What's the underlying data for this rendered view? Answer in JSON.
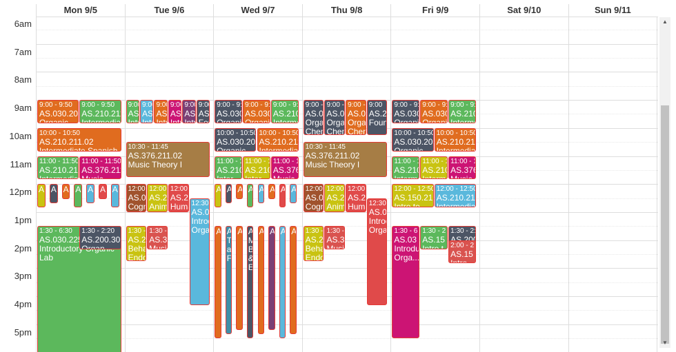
{
  "days": [
    "Mon 9/5",
    "Tue 9/6",
    "Wed 9/7",
    "Thu 9/8",
    "Fri 9/9",
    "Sat 9/10",
    "Sun 9/11"
  ],
  "times": [
    "6am",
    "7am",
    "8am",
    "9am",
    "10am",
    "11am",
    "12pm",
    "1pm",
    "2pm",
    "3pm",
    "4pm",
    "5pm"
  ],
  "colors": {
    "orange": "#e06c1f",
    "green": "#5cb85c",
    "slate": "#4c5565",
    "magenta": "#cc1474",
    "tan": "#a67d45",
    "yellow": "#c9c312",
    "red": "#e04a4a",
    "blue": "#5ab8dc",
    "brown": "#a0522d",
    "purple": "#7b3f74",
    "teal": "#3f8fa8",
    "crimson": "#d9534f"
  },
  "events": [
    {
      "day": 0,
      "start": 9,
      "end": 9.83,
      "col": 0,
      "cols": 2,
      "color": "orange",
      "time": "9:00 - 9:50",
      "code": "AS.030.205",
      "name": "Organic Chemistry I"
    },
    {
      "day": 0,
      "start": 9,
      "end": 9.83,
      "col": 1,
      "cols": 2,
      "color": "green",
      "time": "9:00 - 9:50",
      "code": "AS.210.211",
      "name": "Intermediate Spanish"
    },
    {
      "day": 0,
      "start": 10,
      "end": 10.83,
      "col": 0,
      "cols": 1,
      "color": "orange",
      "time": "10:00 - 10:50",
      "code": "AS.210.211.02",
      "name": "Intermediate Spanish"
    },
    {
      "day": 0,
      "start": 11,
      "end": 11.83,
      "col": 0,
      "cols": 2,
      "color": "green",
      "time": "11:00 - 11:50",
      "code": "AS.210.211",
      "name": "Intermediate"
    },
    {
      "day": 0,
      "start": 11,
      "end": 11.83,
      "col": 1,
      "cols": 2,
      "color": "magenta",
      "time": "11:00 - 11:50",
      "code": "AS.376.211",
      "name": "Music"
    },
    {
      "day": 0,
      "start": 13.5,
      "end": 18.5,
      "col": 0,
      "cols": 1,
      "color": "green",
      "time": "1:30 - 6:30",
      "code": "AS.030.225",
      "name": "Introductory Organic Lab"
    },
    {
      "day": 0,
      "start": 13.5,
      "end": 14.33,
      "col": 1,
      "cols": 2,
      "color": "slate",
      "time": "1:30 - 2:20",
      "code": "AS.200.302",
      "name": "Organ..."
    },
    {
      "day": 1,
      "start": 9,
      "end": 9.83,
      "col": 0,
      "cols": 6,
      "color": "green",
      "time": "9:00",
      "code": "AS.",
      "name": "Intr Org"
    },
    {
      "day": 1,
      "start": 9,
      "end": 9.83,
      "col": 1,
      "cols": 6,
      "color": "blue",
      "time": "9:00",
      "code": "AS.",
      "name": "Intr Org"
    },
    {
      "day": 1,
      "start": 9,
      "end": 9.83,
      "col": 2,
      "cols": 6,
      "color": "orange",
      "time": "9:00",
      "code": "AS.",
      "name": "Intr Org"
    },
    {
      "day": 1,
      "start": 9,
      "end": 9.83,
      "col": 3,
      "cols": 6,
      "color": "magenta",
      "time": "9:00",
      "code": "AS.",
      "name": "Intr Org"
    },
    {
      "day": 1,
      "start": 9,
      "end": 9.83,
      "col": 4,
      "cols": 6,
      "color": "purple",
      "time": "9:00",
      "code": "AS.",
      "name": "Intr Org"
    },
    {
      "day": 1,
      "start": 9,
      "end": 9.83,
      "col": 5,
      "cols": 6,
      "color": "slate",
      "time": "9:00",
      "code": "AS.",
      "name": "Foun of"
    },
    {
      "day": 1,
      "start": 10.5,
      "end": 11.75,
      "col": 0,
      "cols": 1,
      "color": "tan",
      "time": "10:30 - 11:45",
      "code": "AS.376.211.02",
      "name": "Music Theory I"
    },
    {
      "day": 1,
      "start": 12,
      "end": 13,
      "col": 0,
      "cols": 4,
      "color": "brown",
      "time": "12:00 -",
      "code": "AS.05",
      "name": "Cogni"
    },
    {
      "day": 1,
      "start": 12,
      "end": 13,
      "col": 1,
      "cols": 4,
      "color": "yellow",
      "time": "12:00",
      "code": "AS.29",
      "name": "Anima Comm"
    },
    {
      "day": 1,
      "start": 12,
      "end": 13,
      "col": 2,
      "cols": 4,
      "color": "red",
      "time": "12:00 -",
      "code": "AS.29",
      "name": "Huma Sexua"
    },
    {
      "day": 1,
      "start": 12.5,
      "end": 16.33,
      "col": 3,
      "cols": 4,
      "color": "blue",
      "time": "12:30 -",
      "code": "AS.03",
      "name": "Introd Orga"
    },
    {
      "day": 1,
      "start": 13.5,
      "end": 14.75,
      "col": 0,
      "cols": 4,
      "color": "yellow",
      "time": "1:30 - 2:4",
      "code": "AS.200.3",
      "name": "Behavioral Endocr"
    },
    {
      "day": 1,
      "start": 13.5,
      "end": 14.33,
      "col": 1,
      "cols": 4,
      "color": "crimson",
      "time": "1:30 - 2:20",
      "code": "AS.376.2",
      "name": "Musician"
    },
    {
      "day": 2,
      "start": 9,
      "end": 9.83,
      "col": 0,
      "cols": 3,
      "color": "slate",
      "time": "9:00 - 9:5",
      "code": "AS.030.",
      "name": "Organic Ch"
    },
    {
      "day": 2,
      "start": 9,
      "end": 9.83,
      "col": 1,
      "cols": 3,
      "color": "orange",
      "time": "9:00 - 9:5",
      "code": "AS.030.",
      "name": "Organic Ch"
    },
    {
      "day": 2,
      "start": 9,
      "end": 9.83,
      "col": 2,
      "cols": 3,
      "color": "green",
      "time": "9:00 - 9:5",
      "code": "AS.210.",
      "name": "Intermed"
    },
    {
      "day": 2,
      "start": 10,
      "end": 10.83,
      "col": 0,
      "cols": 2,
      "color": "slate",
      "time": "10:00 - 10:50",
      "code": "AS.030.205.",
      "name": "Organic Ch"
    },
    {
      "day": 2,
      "start": 10,
      "end": 10.83,
      "col": 1,
      "cols": 2,
      "color": "orange",
      "time": "10:00 - 10:50",
      "code": "AS.210.211.",
      "name": "Intermediate"
    },
    {
      "day": 2,
      "start": 11,
      "end": 11.83,
      "col": 0,
      "cols": 3,
      "color": "green",
      "time": "11:00 - 11",
      "code": "AS.210.",
      "name": "Inter"
    },
    {
      "day": 2,
      "start": 11,
      "end": 11.83,
      "col": 1,
      "cols": 3,
      "color": "yellow",
      "time": "11:00 - 11",
      "code": "AS.210.",
      "name": "Inter"
    },
    {
      "day": 2,
      "start": 11,
      "end": 11.83,
      "col": 2,
      "cols": 3,
      "color": "magenta",
      "time": "11:00 - 11",
      "code": "AS.376.",
      "name": "Music"
    },
    {
      "day": 3,
      "start": 9,
      "end": 10.25,
      "col": 0,
      "cols": 4,
      "color": "slate",
      "time": "9:00 -",
      "code": "AS.03",
      "name": "Orgar Chem"
    },
    {
      "day": 3,
      "start": 9,
      "end": 10.25,
      "col": 1,
      "cols": 4,
      "color": "slate",
      "time": "9:00 -",
      "code": "AS.03",
      "name": "Orgar Chem"
    },
    {
      "day": 3,
      "start": 9,
      "end": 10.25,
      "col": 2,
      "cols": 4,
      "color": "orange",
      "time": "9:00 -",
      "code": "AS.03",
      "name": "Orgar Chem"
    },
    {
      "day": 3,
      "start": 9,
      "end": 10.25,
      "col": 3,
      "cols": 4,
      "color": "slate",
      "time": "9:00",
      "code": "AS.20",
      "name": "Found"
    },
    {
      "day": 3,
      "start": 10.5,
      "end": 11.75,
      "col": 0,
      "cols": 1,
      "color": "tan",
      "time": "10:30 - 11:45",
      "code": "AS.376.211.02",
      "name": "Music Theory I"
    },
    {
      "day": 3,
      "start": 12,
      "end": 13,
      "col": 0,
      "cols": 4,
      "color": "brown",
      "time": "12:00 -",
      "code": "AS.05",
      "name": "Cogni"
    },
    {
      "day": 3,
      "start": 12,
      "end": 13,
      "col": 1,
      "cols": 4,
      "color": "yellow",
      "time": "12:00",
      "code": "AS.29",
      "name": "Anima Comm"
    },
    {
      "day": 3,
      "start": 12,
      "end": 13,
      "col": 2,
      "cols": 4,
      "color": "red",
      "time": "12:00 -",
      "code": "AS.29",
      "name": "Huma Sexua"
    },
    {
      "day": 3,
      "start": 12.5,
      "end": 16.33,
      "col": 3,
      "cols": 4,
      "color": "red",
      "time": "12:30 -",
      "code": "AS.03",
      "name": "Introd Orga"
    },
    {
      "day": 3,
      "start": 13.5,
      "end": 14.75,
      "col": 0,
      "cols": 4,
      "color": "yellow",
      "time": "1:30 - 2:4",
      "code": "AS.200.3",
      "name": "Behavioral Endocr"
    },
    {
      "day": 3,
      "start": 13.5,
      "end": 14.33,
      "col": 1,
      "cols": 4,
      "color": "crimson",
      "time": "1:30 - 2:20",
      "code": "AS.376.2",
      "name": "Musician"
    },
    {
      "day": 4,
      "start": 9,
      "end": 9.83,
      "col": 0,
      "cols": 3,
      "color": "slate",
      "time": "9:00 - 9:5",
      "code": "AS.030.",
      "name": "Organic Ch"
    },
    {
      "day": 4,
      "start": 9,
      "end": 9.83,
      "col": 1,
      "cols": 3,
      "color": "orange",
      "time": "9:00 - 9:5",
      "code": "AS.030.",
      "name": "Organic Ch"
    },
    {
      "day": 4,
      "start": 9,
      "end": 9.83,
      "col": 2,
      "cols": 3,
      "color": "green",
      "time": "9:00 - 9:5",
      "code": "AS.210.",
      "name": "Intermed"
    },
    {
      "day": 4,
      "start": 10,
      "end": 10.83,
      "col": 0,
      "cols": 2,
      "color": "slate",
      "time": "10:00 - 10:50",
      "code": "AS.030.205.",
      "name": "Organic Che"
    },
    {
      "day": 4,
      "start": 10,
      "end": 10.83,
      "col": 1,
      "cols": 2,
      "color": "orange",
      "time": "10:00 - 10:50",
      "code": "AS.210.211.",
      "name": "Intermediate"
    },
    {
      "day": 4,
      "start": 11,
      "end": 11.83,
      "col": 0,
      "cols": 3,
      "color": "green",
      "time": "11:00 - 11",
      "code": "AS.210.",
      "name": "Interm"
    },
    {
      "day": 4,
      "start": 11,
      "end": 11.83,
      "col": 1,
      "cols": 3,
      "color": "yellow",
      "time": "11:00 - 11",
      "code": "AS.210.",
      "name": "Interm"
    },
    {
      "day": 4,
      "start": 11,
      "end": 11.83,
      "col": 2,
      "cols": 3,
      "color": "magenta",
      "time": "11:00 - 11",
      "code": "AS.376.",
      "name": "Music"
    },
    {
      "day": 4,
      "start": 12,
      "end": 12.83,
      "col": 0,
      "cols": 2,
      "color": "yellow",
      "time": "12:00 - 12:50",
      "code": "AS.150.219.",
      "name": "Intro to Bioe"
    },
    {
      "day": 4,
      "start": 12,
      "end": 12.83,
      "col": 1,
      "cols": 2,
      "color": "blue",
      "time": "12:00 - 12:50",
      "code": "AS.210.211.",
      "name": "Intermediate"
    },
    {
      "day": 4,
      "start": 13.5,
      "end": 17.5,
      "col": 0,
      "cols": 3,
      "color": "magenta",
      "time": "1:30 - 6",
      "code": "AS.03",
      "name": "Introdu Orga..."
    },
    {
      "day": 4,
      "start": 13.5,
      "end": 14.33,
      "col": 1,
      "cols": 3,
      "color": "green",
      "time": "1:30 - 2",
      "code": "AS.15",
      "name": "Intro t"
    },
    {
      "day": 4,
      "start": 13.5,
      "end": 14.33,
      "col": 2,
      "cols": 3,
      "color": "slate",
      "time": "1:30 - 2:20",
      "code": "AS.200",
      "name": "Behav"
    },
    {
      "day": 4,
      "start": 14,
      "end": 14.83,
      "col": 2,
      "cols": 3,
      "color": "crimson",
      "time": "2:00 - 2",
      "code": "AS.15",
      "name": "Intro"
    }
  ],
  "narrow": [
    {
      "day": 0,
      "start": 12,
      "end": 12.83,
      "colors": [
        "yellow",
        "slate",
        "orange",
        "green",
        "blue",
        "red",
        "blue"
      ],
      "labels": [
        "A",
        "A",
        "A",
        "A",
        "A",
        "A",
        "A"
      ]
    },
    {
      "day": 2,
      "start": 12,
      "end": 12.83,
      "colors": [
        "yellow",
        "slate",
        "orange",
        "green",
        "blue",
        "orange",
        "red",
        "blue"
      ],
      "labels": [
        "A",
        "A",
        "A",
        "A",
        "A",
        "A",
        "A",
        "A"
      ]
    },
    {
      "day": 2,
      "start": 13.5,
      "end": 17.5,
      "colors": [
        "orange",
        "teal",
        "orange",
        "slate",
        "orange",
        "purple",
        "blue",
        "orange"
      ],
      "labels": [
        "A",
        "A T a F",
        "A",
        "A M B & E",
        "A",
        "A",
        "A",
        "AS"
      ]
    }
  ]
}
